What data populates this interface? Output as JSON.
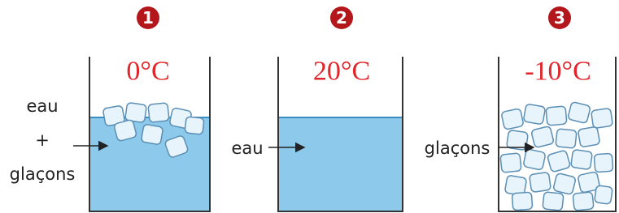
{
  "beakers": [
    {
      "number": "1",
      "temperature": "0°C",
      "label": [
        "eau",
        "+",
        "glaçons"
      ]
    },
    {
      "number": "2",
      "temperature": "20°C",
      "label": [
        "eau"
      ]
    },
    {
      "number": "3",
      "temperature": "-10°C",
      "label": [
        "glaçons"
      ]
    }
  ]
}
